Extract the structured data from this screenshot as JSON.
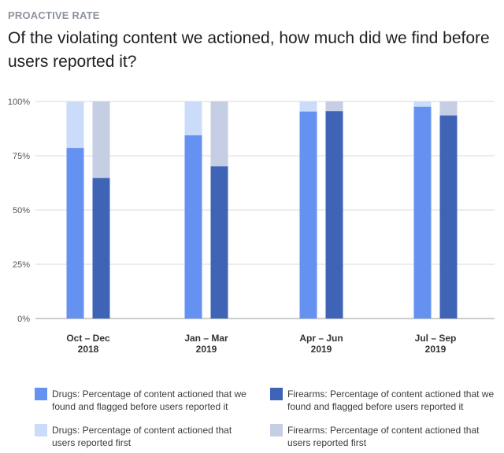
{
  "header": {
    "eyebrow": "PROACTIVE RATE",
    "title": "Of the violating content we actioned, how much did we find before users reported it?"
  },
  "colors": {
    "drugs_proactive": "#6592f0",
    "drugs_reported": "#cadcfa",
    "firearms_proactive": "#3f64b5",
    "firearms_reported": "#c5cee2",
    "grid": "#d8d8d8",
    "baseline": "#999999"
  },
  "legend": [
    {
      "key": "drugs_proactive",
      "label": "Drugs: Percentage of content actioned that we found and flagged before users reported it"
    },
    {
      "key": "firearms_proactive",
      "label": "Firearms: Percentage of content actioned that we found and flagged before users reported it"
    },
    {
      "key": "drugs_reported",
      "label": "Drugs: Percentage of content actioned that users reported first"
    },
    {
      "key": "firearms_reported",
      "label": "Firearms: Percentage of content actioned that users reported first"
    }
  ],
  "chart_data": {
    "type": "bar",
    "stacked": true,
    "title": "Of the violating content we actioned, how much did we find before users reported it?",
    "xlabel": "",
    "ylabel": "",
    "ylim": [
      0,
      100
    ],
    "yticks": [
      "0%",
      "25%",
      "50%",
      "75%",
      "100%"
    ],
    "yticks_values": [
      0,
      25,
      50,
      75,
      100
    ],
    "categories": [
      [
        "Oct – Dec",
        "2018"
      ],
      [
        "Jan – Mar",
        "2019"
      ],
      [
        "Apr – Jun",
        "2019"
      ],
      [
        "Jul – Sep",
        "2019"
      ]
    ],
    "series": [
      {
        "name": "Drugs: Percentage of content actioned that we found and flagged before users reported it",
        "group": "drugs",
        "values": [
          78.6,
          84.4,
          95.4,
          97.6
        ]
      },
      {
        "name": "Drugs: Percentage of content actioned that users reported first",
        "group": "drugs",
        "values": [
          21.4,
          15.6,
          4.6,
          2.4
        ]
      },
      {
        "name": "Firearms: Percentage of content actioned that we found and flagged before users reported it",
        "group": "firearms",
        "values": [
          64.8,
          70.2,
          95.6,
          93.6
        ]
      },
      {
        "name": "Firearms: Percentage of content actioned that users reported first",
        "group": "firearms",
        "values": [
          35.2,
          29.8,
          4.4,
          6.4
        ]
      }
    ],
    "legend_position": "bottom",
    "grid": true
  }
}
